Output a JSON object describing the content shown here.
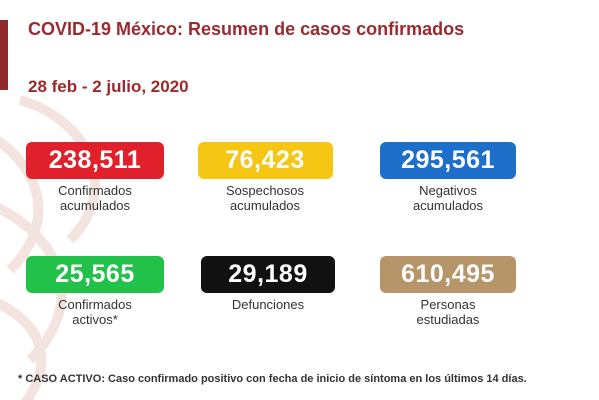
{
  "header": {
    "title": "COVID-19 México: Resumen de casos confirmados",
    "date_range": "28 feb - 2 julio, 2020"
  },
  "stats": {
    "confirmados": {
      "value": "238,511",
      "label": "Confirmados\nacumulados",
      "color": "#e0202a"
    },
    "sospechosos": {
      "value": "76,423",
      "label": "Sospechosos\nacumulados",
      "color": "#f5c613"
    },
    "negativos": {
      "value": "295,561",
      "label": "Negativos\nacumulados",
      "color": "#1e6fc9"
    },
    "activos": {
      "value": "25,565",
      "label": "Confirmados\nactivos*",
      "color": "#22c24a"
    },
    "defunciones": {
      "value": "29,189",
      "label": "Defunciones",
      "color": "#111111"
    },
    "estudiadas": {
      "value": "610,495",
      "label": "Personas\nestudiadas",
      "color": "#b7956a"
    }
  },
  "footnote": "* CASO ACTIVO: Caso confirmado positivo con fecha de inicio de síntoma en los últimos 14 días."
}
